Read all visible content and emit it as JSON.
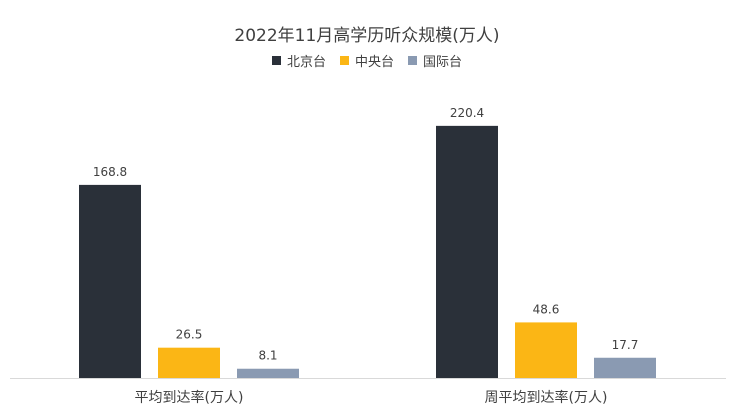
{
  "chart_data": {
    "type": "bar",
    "title": "2022年11月高学历听众规模(万人)",
    "categories": [
      "平均到达率(万人)",
      "周平均到达率(万人)"
    ],
    "series": [
      {
        "name": "北京台",
        "values": [
          168.8,
          220.4
        ],
        "color": "#2a3039"
      },
      {
        "name": "中央台",
        "values": [
          26.5,
          48.6
        ],
        "color": "#fbb615"
      },
      {
        "name": "国际台",
        "values": [
          8.1,
          17.7
        ],
        "color": "#8a9ab2"
      }
    ],
    "ylim": [
      0,
      250
    ],
    "grid": false,
    "legend_position": "top"
  }
}
